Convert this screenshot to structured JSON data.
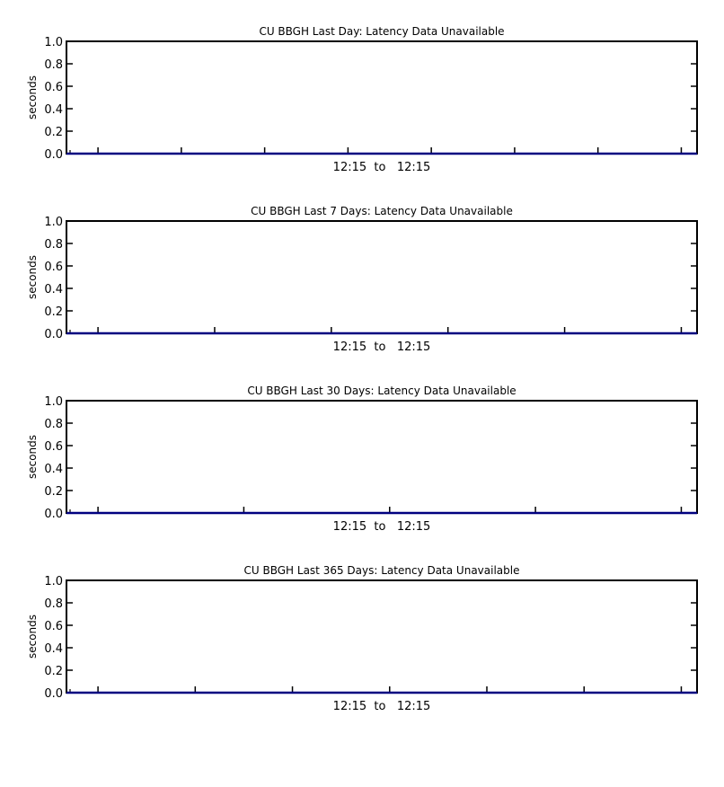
{
  "chart_data": [
    {
      "type": "line",
      "title": "CU BBGH Last Day: Latency Data Unavailable",
      "ylabel": "seconds",
      "xlabel": "",
      "ylim": [
        0.0,
        1.0
      ],
      "y_ticks": [
        "0.0",
        "0.2",
        "0.4",
        "0.6",
        "0.8",
        "1.0"
      ],
      "x_major_tick_count": 8,
      "x_range_label": "12:15  to   12:15",
      "series": [
        {
          "values": [
            0,
            0
          ],
          "color": "#000080"
        }
      ],
      "grid": false,
      "legend": "none"
    },
    {
      "type": "line",
      "title": "CU BBGH Last 7 Days: Latency Data Unavailable",
      "ylabel": "seconds",
      "xlabel": "",
      "ylim": [
        0.0,
        1.0
      ],
      "y_ticks": [
        "0.0",
        "0.2",
        "0.4",
        "0.6",
        "0.8",
        "1.0"
      ],
      "x_major_tick_count": 6,
      "x_range_label": "12:15  to   12:15",
      "series": [
        {
          "values": [
            0,
            0
          ],
          "color": "#000080"
        }
      ],
      "grid": false,
      "legend": "none"
    },
    {
      "type": "line",
      "title": "CU BBGH Last 30 Days: Latency Data Unavailable",
      "ylabel": "seconds",
      "xlabel": "",
      "ylim": [
        0.0,
        1.0
      ],
      "y_ticks": [
        "0.0",
        "0.2",
        "0.4",
        "0.6",
        "0.8",
        "1.0"
      ],
      "x_major_tick_count": 5,
      "x_range_label": "12:15  to   12:15",
      "series": [
        {
          "values": [
            0,
            0
          ],
          "color": "#000080"
        }
      ],
      "grid": false,
      "legend": "none"
    },
    {
      "type": "line",
      "title": "CU BBGH Last 365 Days: Latency Data Unavailable",
      "ylabel": "seconds",
      "xlabel": "",
      "ylim": [
        0.0,
        1.0
      ],
      "y_ticks": [
        "0.0",
        "0.2",
        "0.4",
        "0.6",
        "0.8",
        "1.0"
      ],
      "x_major_tick_count": 7,
      "x_range_label": "12:15  to   12:15",
      "series": [
        {
          "values": [
            0,
            0
          ],
          "color": "#000080"
        }
      ],
      "grid": false,
      "legend": "none"
    }
  ]
}
